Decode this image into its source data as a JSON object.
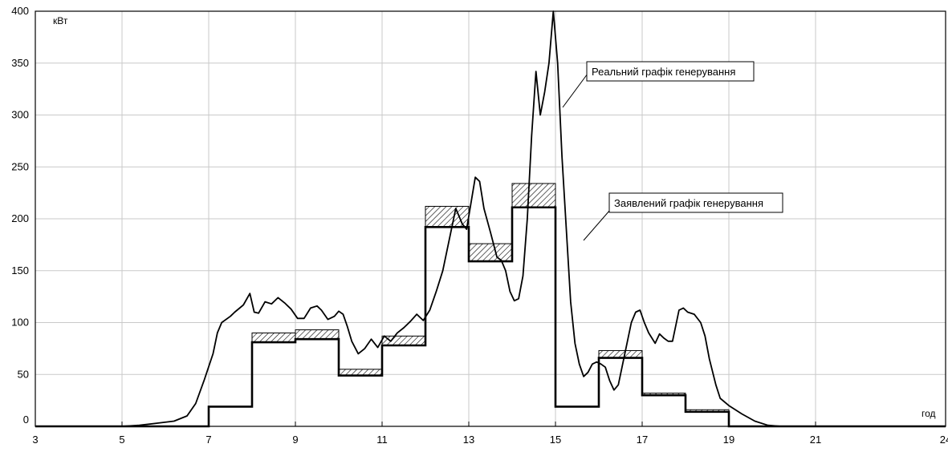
{
  "chart_data": {
    "type": "line",
    "title": "",
    "ylabel": "кВт",
    "xlabel": "год",
    "xlim": [
      3,
      24
    ],
    "ylim": [
      0,
      400
    ],
    "grid": true,
    "x_ticks": [
      3,
      5,
      7,
      9,
      11,
      13,
      15,
      17,
      19,
      21,
      24
    ],
    "y_ticks": [
      0,
      50,
      100,
      150,
      200,
      250,
      300,
      350,
      400
    ],
    "annotations": {
      "real": "Реальний графік генерування",
      "declared": "Заявлений графік генерування"
    },
    "series": [
      {
        "name": "Реальний графік генерування",
        "kind": "line",
        "points": [
          [
            3,
            0
          ],
          [
            5,
            0
          ],
          [
            5.4,
            1
          ],
          [
            5.8,
            3
          ],
          [
            6.2,
            5
          ],
          [
            6.5,
            10
          ],
          [
            6.7,
            22
          ],
          [
            6.9,
            45
          ],
          [
            7.1,
            70
          ],
          [
            7.2,
            90
          ],
          [
            7.3,
            100
          ],
          [
            7.5,
            106
          ],
          [
            7.6,
            110
          ],
          [
            7.8,
            117
          ],
          [
            7.95,
            128
          ],
          [
            8.05,
            110
          ],
          [
            8.15,
            109
          ],
          [
            8.3,
            120
          ],
          [
            8.45,
            118
          ],
          [
            8.6,
            124
          ],
          [
            8.75,
            119
          ],
          [
            8.9,
            113
          ],
          [
            9.05,
            104
          ],
          [
            9.2,
            104
          ],
          [
            9.35,
            114
          ],
          [
            9.5,
            116
          ],
          [
            9.6,
            112
          ],
          [
            9.75,
            103
          ],
          [
            9.9,
            106
          ],
          [
            10.0,
            111
          ],
          [
            10.1,
            108
          ],
          [
            10.2,
            96
          ],
          [
            10.3,
            82
          ],
          [
            10.45,
            70
          ],
          [
            10.6,
            75
          ],
          [
            10.75,
            84
          ],
          [
            10.9,
            76
          ],
          [
            11.05,
            87
          ],
          [
            11.2,
            82
          ],
          [
            11.35,
            90
          ],
          [
            11.5,
            95
          ],
          [
            11.65,
            101
          ],
          [
            11.8,
            108
          ],
          [
            11.95,
            102
          ],
          [
            12.1,
            112
          ],
          [
            12.25,
            130
          ],
          [
            12.4,
            150
          ],
          [
            12.55,
            180
          ],
          [
            12.7,
            210
          ],
          [
            12.85,
            195
          ],
          [
            12.95,
            190
          ],
          [
            13.05,
            215
          ],
          [
            13.15,
            240
          ],
          [
            13.25,
            236
          ],
          [
            13.35,
            210
          ],
          [
            13.5,
            187
          ],
          [
            13.65,
            163
          ],
          [
            13.75,
            160
          ],
          [
            13.85,
            150
          ],
          [
            13.95,
            130
          ],
          [
            14.05,
            121
          ],
          [
            14.15,
            123
          ],
          [
            14.25,
            145
          ],
          [
            14.35,
            200
          ],
          [
            14.45,
            280
          ],
          [
            14.55,
            342
          ],
          [
            14.65,
            300
          ],
          [
            14.75,
            322
          ],
          [
            14.85,
            350
          ],
          [
            14.95,
            400
          ],
          [
            15.05,
            350
          ],
          [
            15.15,
            260
          ],
          [
            15.25,
            190
          ],
          [
            15.35,
            120
          ],
          [
            15.45,
            80
          ],
          [
            15.55,
            60
          ],
          [
            15.65,
            48
          ],
          [
            15.75,
            52
          ],
          [
            15.85,
            60
          ],
          [
            15.95,
            62
          ],
          [
            16.05,
            60
          ],
          [
            16.15,
            57
          ],
          [
            16.25,
            44
          ],
          [
            16.35,
            35
          ],
          [
            16.45,
            40
          ],
          [
            16.55,
            60
          ],
          [
            16.65,
            80
          ],
          [
            16.75,
            100
          ],
          [
            16.85,
            110
          ],
          [
            16.95,
            112
          ],
          [
            17.05,
            100
          ],
          [
            17.15,
            90
          ],
          [
            17.3,
            80
          ],
          [
            17.4,
            89
          ],
          [
            17.5,
            85
          ],
          [
            17.6,
            82
          ],
          [
            17.7,
            82
          ],
          [
            17.85,
            112
          ],
          [
            17.95,
            114
          ],
          [
            18.05,
            110
          ],
          [
            18.2,
            108
          ],
          [
            18.35,
            100
          ],
          [
            18.45,
            87
          ],
          [
            18.55,
            65
          ],
          [
            18.7,
            40
          ],
          [
            18.8,
            27
          ],
          [
            19.0,
            20
          ],
          [
            19.3,
            12
          ],
          [
            19.6,
            5
          ],
          [
            19.9,
            1
          ],
          [
            20.2,
            0
          ],
          [
            24,
            0
          ]
        ]
      },
      {
        "name": "Заявлений графік генерування",
        "kind": "step",
        "steps": [
          {
            "x0": 3,
            "x1": 7,
            "lo": 0,
            "hi": 0
          },
          {
            "x0": 7,
            "x1": 8,
            "lo": 19,
            "hi": 19
          },
          {
            "x0": 8,
            "x1": 9,
            "lo": 81,
            "hi": 90
          },
          {
            "x0": 9,
            "x1": 10,
            "lo": 84,
            "hi": 93
          },
          {
            "x0": 10,
            "x1": 11,
            "lo": 49,
            "hi": 55
          },
          {
            "x0": 11,
            "x1": 12,
            "lo": 78,
            "hi": 87
          },
          {
            "x0": 12,
            "x1": 13,
            "lo": 192,
            "hi": 212
          },
          {
            "x0": 13,
            "x1": 14,
            "lo": 159,
            "hi": 176
          },
          {
            "x0": 14,
            "x1": 15,
            "lo": 211,
            "hi": 234
          },
          {
            "x0": 15,
            "x1": 16,
            "lo": 19,
            "hi": 19
          },
          {
            "x0": 16,
            "x1": 17,
            "lo": 66,
            "hi": 73
          },
          {
            "x0": 17,
            "x1": 18,
            "lo": 30,
            "hi": 32
          },
          {
            "x0": 18,
            "x1": 19,
            "lo": 14,
            "hi": 16
          },
          {
            "x0": 19,
            "x1": 24,
            "lo": 0,
            "hi": 0
          }
        ]
      }
    ]
  }
}
